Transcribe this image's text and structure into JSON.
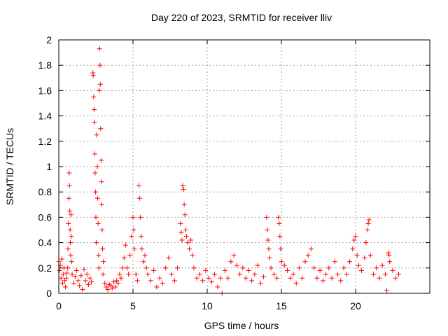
{
  "chart_data": {
    "type": "scatter",
    "title": "Day 220 of 2023, SRMTID for receiver lliv",
    "xlabel": "GPS time / hours",
    "ylabel": "SRMTID / TECUs",
    "xlim": [
      0,
      25
    ],
    "ylim": [
      0,
      2
    ],
    "x_ticks": [
      0,
      5,
      10,
      15,
      20
    ],
    "x_tick_labels": [
      "0",
      "5",
      "10",
      "15",
      "20"
    ],
    "y_ticks": [
      0,
      0.2,
      0.4,
      0.6,
      0.8,
      1,
      1.2,
      1.4,
      1.6,
      1.8,
      2
    ],
    "y_tick_labels": [
      "0",
      "0.2",
      "0.4",
      "0.6",
      "0.8",
      "1",
      "1.2",
      "1.4",
      "1.6",
      "1.8",
      "2"
    ],
    "grid": true,
    "marker": "+",
    "marker_color": "#ff0000",
    "series": [
      {
        "name": "SRMTID",
        "points": [
          [
            0.0,
            0.25
          ],
          [
            0.05,
            0.18
          ],
          [
            0.1,
            0.22
          ],
          [
            0.15,
            0.12
          ],
          [
            0.2,
            0.27
          ],
          [
            0.25,
            0.08
          ],
          [
            0.3,
            0.15
          ],
          [
            0.35,
            0.2
          ],
          [
            0.4,
            0.1
          ],
          [
            0.45,
            0.05
          ],
          [
            0.5,
            0.12
          ],
          [
            0.55,
            0.16
          ],
          [
            0.6,
            0.2
          ],
          [
            0.62,
            0.35
          ],
          [
            0.65,
            0.55
          ],
          [
            0.68,
            0.75
          ],
          [
            0.7,
            0.95
          ],
          [
            0.72,
            0.85
          ],
          [
            0.74,
            0.65
          ],
          [
            0.76,
            0.5
          ],
          [
            0.78,
            0.4
          ],
          [
            0.8,
            0.3
          ],
          [
            0.82,
            0.62
          ],
          [
            0.84,
            0.45
          ],
          [
            0.86,
            0.25
          ],
          [
            0.9,
            0.15
          ],
          [
            1.0,
            0.08
          ],
          [
            1.1,
            0.13
          ],
          [
            1.2,
            0.18
          ],
          [
            1.3,
            0.1
          ],
          [
            1.4,
            0.06
          ],
          [
            1.5,
            0.14
          ],
          [
            1.6,
            0.03
          ],
          [
            1.7,
            0.19
          ],
          [
            1.8,
            0.1
          ],
          [
            1.9,
            0.15
          ],
          [
            2.0,
            0.07
          ],
          [
            2.1,
            0.12
          ],
          [
            2.2,
            0.09
          ],
          [
            2.3,
            1.74
          ],
          [
            2.32,
            1.72
          ],
          [
            2.35,
            1.55
          ],
          [
            2.38,
            1.45
          ],
          [
            2.4,
            1.35
          ],
          [
            2.42,
            1.1
          ],
          [
            2.45,
            0.95
          ],
          [
            2.48,
            0.8
          ],
          [
            2.5,
            0.6
          ],
          [
            2.52,
            0.4
          ],
          [
            2.55,
            1.25
          ],
          [
            2.6,
            1.0
          ],
          [
            2.62,
            0.75
          ],
          [
            2.65,
            0.55
          ],
          [
            2.68,
            0.3
          ],
          [
            2.7,
            0.2
          ],
          [
            2.72,
            1.6
          ],
          [
            2.75,
            1.93
          ],
          [
            2.78,
            1.8
          ],
          [
            2.8,
            1.65
          ],
          [
            2.82,
            1.3
          ],
          [
            2.85,
            1.05
          ],
          [
            2.88,
            0.88
          ],
          [
            2.9,
            0.7
          ],
          [
            2.92,
            0.5
          ],
          [
            2.95,
            0.35
          ],
          [
            2.98,
            0.15
          ],
          [
            3.0,
            0.25
          ],
          [
            3.1,
            0.08
          ],
          [
            3.2,
            0.05
          ],
          [
            3.3,
            0.03
          ],
          [
            3.4,
            0.07
          ],
          [
            3.5,
            0.06
          ],
          [
            3.6,
            0.04
          ],
          [
            3.7,
            0.09
          ],
          [
            3.8,
            0.05
          ],
          [
            3.9,
            0.1
          ],
          [
            4.0,
            0.08
          ],
          [
            4.1,
            0.15
          ],
          [
            4.2,
            0.12
          ],
          [
            4.3,
            0.2
          ],
          [
            4.4,
            0.28
          ],
          [
            4.5,
            0.38
          ],
          [
            4.6,
            0.2
          ],
          [
            4.7,
            0.15
          ],
          [
            4.8,
            0.3
          ],
          [
            4.9,
            0.45
          ],
          [
            5.0,
            0.6
          ],
          [
            5.05,
            0.5
          ],
          [
            5.1,
            0.35
          ],
          [
            5.2,
            0.15
          ],
          [
            5.3,
            0.1
          ],
          [
            5.4,
            0.85
          ],
          [
            5.45,
            0.75
          ],
          [
            5.5,
            0.6
          ],
          [
            5.55,
            0.45
          ],
          [
            5.6,
            0.35
          ],
          [
            5.7,
            0.25
          ],
          [
            5.8,
            0.3
          ],
          [
            5.9,
            0.2
          ],
          [
            6.0,
            0.15
          ],
          [
            6.2,
            0.1
          ],
          [
            6.4,
            0.18
          ],
          [
            6.6,
            0.05
          ],
          [
            6.8,
            0.12
          ],
          [
            7.0,
            0.08
          ],
          [
            7.2,
            0.2
          ],
          [
            7.4,
            0.28
          ],
          [
            7.6,
            0.15
          ],
          [
            7.8,
            0.1
          ],
          [
            8.0,
            0.2
          ],
          [
            8.2,
            0.55
          ],
          [
            8.25,
            0.48
          ],
          [
            8.3,
            0.42
          ],
          [
            8.35,
            0.85
          ],
          [
            8.4,
            0.82
          ],
          [
            8.45,
            0.7
          ],
          [
            8.5,
            0.62
          ],
          [
            8.55,
            0.5
          ],
          [
            8.6,
            0.45
          ],
          [
            8.7,
            0.4
          ],
          [
            8.8,
            0.35
          ],
          [
            8.9,
            0.42
          ],
          [
            9.0,
            0.3
          ],
          [
            9.1,
            0.2
          ],
          [
            9.3,
            0.12
          ],
          [
            9.5,
            0.15
          ],
          [
            9.7,
            0.1
          ],
          [
            9.9,
            0.18
          ],
          [
            10.1,
            0.12
          ],
          [
            10.3,
            0.09
          ],
          [
            10.5,
            0.15
          ],
          [
            10.7,
            0.05
          ],
          [
            10.9,
            0.12
          ],
          [
            11.0,
            0.0
          ],
          [
            11.2,
            0.18
          ],
          [
            11.4,
            0.12
          ],
          [
            11.6,
            0.25
          ],
          [
            11.8,
            0.3
          ],
          [
            12.0,
            0.22
          ],
          [
            12.2,
            0.15
          ],
          [
            12.4,
            0.2
          ],
          [
            12.6,
            0.12
          ],
          [
            12.8,
            0.18
          ],
          [
            13.0,
            0.1
          ],
          [
            13.2,
            0.15
          ],
          [
            13.4,
            0.22
          ],
          [
            13.6,
            0.08
          ],
          [
            13.8,
            0.13
          ],
          [
            14.0,
            0.6
          ],
          [
            14.05,
            0.5
          ],
          [
            14.1,
            0.42
          ],
          [
            14.15,
            0.35
          ],
          [
            14.2,
            0.28
          ],
          [
            14.3,
            0.2
          ],
          [
            14.5,
            0.15
          ],
          [
            14.7,
            0.12
          ],
          [
            14.8,
            0.6
          ],
          [
            14.85,
            0.55
          ],
          [
            14.9,
            0.45
          ],
          [
            14.95,
            0.35
          ],
          [
            15.0,
            0.25
          ],
          [
            15.2,
            0.22
          ],
          [
            15.4,
            0.18
          ],
          [
            15.6,
            0.12
          ],
          [
            15.8,
            0.15
          ],
          [
            16.0,
            0.08
          ],
          [
            16.2,
            0.2
          ],
          [
            16.4,
            0.12
          ],
          [
            16.6,
            0.25
          ],
          [
            16.8,
            0.3
          ],
          [
            17.0,
            0.35
          ],
          [
            17.2,
            0.2
          ],
          [
            17.4,
            0.12
          ],
          [
            17.6,
            0.18
          ],
          [
            17.8,
            0.1
          ],
          [
            18.0,
            0.15
          ],
          [
            18.2,
            0.2
          ],
          [
            18.4,
            0.12
          ],
          [
            18.6,
            0.25
          ],
          [
            18.8,
            0.15
          ],
          [
            19.0,
            0.1
          ],
          [
            19.2,
            0.2
          ],
          [
            19.4,
            0.15
          ],
          [
            19.6,
            0.25
          ],
          [
            19.8,
            0.35
          ],
          [
            19.9,
            0.42
          ],
          [
            20.0,
            0.45
          ],
          [
            20.1,
            0.3
          ],
          [
            20.2,
            0.22
          ],
          [
            20.4,
            0.18
          ],
          [
            20.6,
            0.28
          ],
          [
            20.7,
            0.4
          ],
          [
            20.8,
            0.5
          ],
          [
            20.85,
            0.55
          ],
          [
            20.9,
            0.58
          ],
          [
            21.0,
            0.3
          ],
          [
            21.2,
            0.15
          ],
          [
            21.4,
            0.2
          ],
          [
            21.6,
            0.12
          ],
          [
            21.8,
            0.22
          ],
          [
            22.0,
            0.15
          ],
          [
            22.1,
            0.02
          ],
          [
            22.2,
            0.32
          ],
          [
            22.25,
            0.3
          ],
          [
            22.3,
            0.25
          ],
          [
            22.5,
            0.18
          ],
          [
            22.7,
            0.12
          ],
          [
            22.9,
            0.15
          ]
        ]
      }
    ]
  }
}
